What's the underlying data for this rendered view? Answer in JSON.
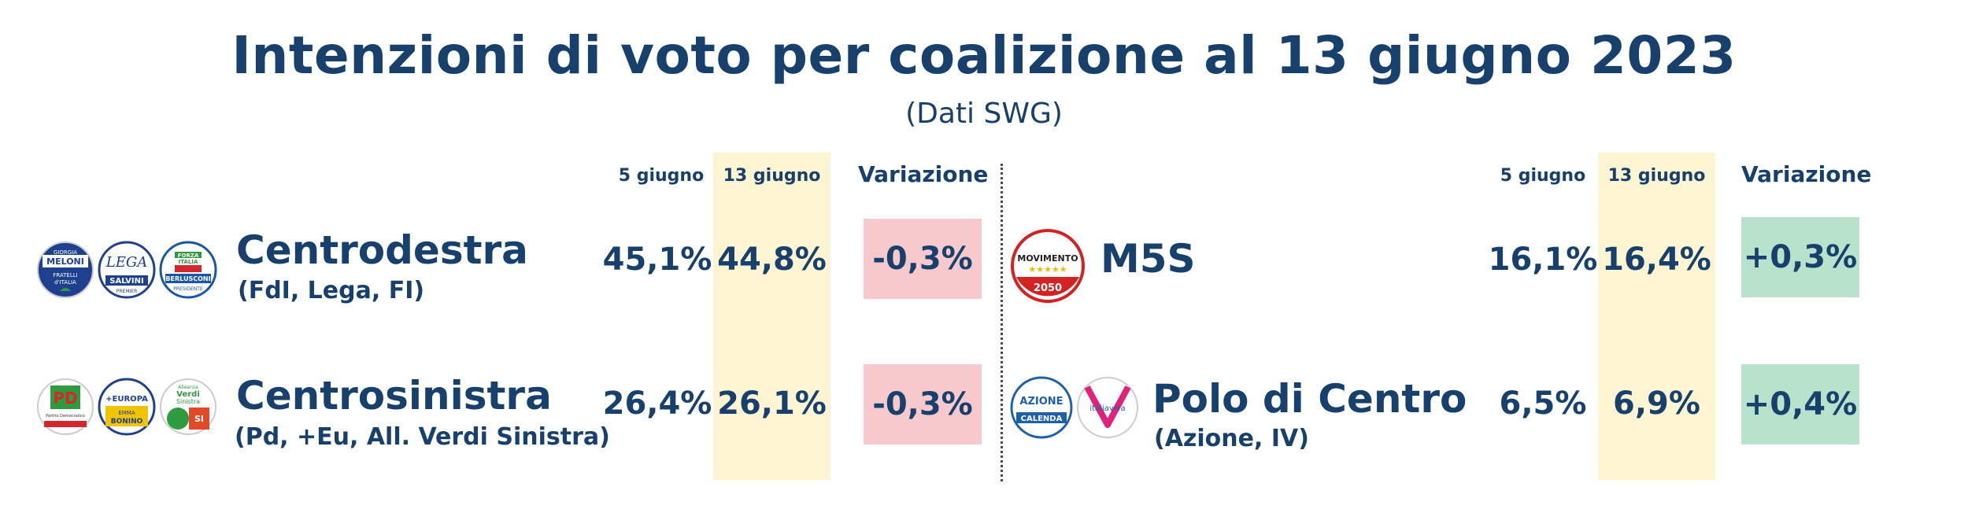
{
  "title": "Intenzioni di voto per coalizione al 13 giugno 2023",
  "subtitle": "(Dati SWG)",
  "left": {
    "headers": {
      "prev": "5 giugno",
      "curr": "13 giugno",
      "change": "Variazione"
    },
    "rows": [
      {
        "name": "Centrodestra",
        "sub": "(FdI, Lega, FI)",
        "prev": "45,1%",
        "curr": "44,8%",
        "change": "-0,3%",
        "logos": [
          {
            "icon": "fratelli-italia-logo",
            "texts": [
              "GIORGIA",
              "MELONI",
              "FRATELLI",
              "d'ITALIA"
            ]
          },
          {
            "icon": "lega-logo",
            "texts": [
              "LEGA",
              "SALVINI",
              "PREMIER"
            ]
          },
          {
            "icon": "forza-italia-logo",
            "texts": [
              "FORZA",
              "ITALIA",
              "BERLUSCONI",
              "PRESIDENTE"
            ]
          }
        ]
      },
      {
        "name": "Centrosinistra",
        "sub": "(Pd, +Eu, All. Verdi Sinistra)",
        "prev": "26,4%",
        "curr": "26,1%",
        "change": "-0,3%",
        "logos": [
          {
            "icon": "pd-logo",
            "texts": [
              "PD",
              "Partito Democratico"
            ]
          },
          {
            "icon": "piu-europa-logo",
            "texts": [
              "+EUROPA",
              "EMMA",
              "BONINO"
            ]
          },
          {
            "icon": "verdi-sinistra-logo",
            "texts": [
              "Alleanza",
              "Verdi",
              "Sinistra",
              "SI"
            ]
          }
        ]
      }
    ]
  },
  "right": {
    "headers": {
      "prev": "5 giugno",
      "curr": "13 giugno",
      "change": "Variazione"
    },
    "rows": [
      {
        "name": "M5S",
        "sub": "",
        "prev": "16,1%",
        "curr": "16,4%",
        "change": "+0,3%",
        "logos": [
          {
            "icon": "m5s-logo",
            "texts": [
              "MOVIMENTO",
              "2050"
            ]
          }
        ]
      },
      {
        "name": "Polo di Centro",
        "sub": "(Azione, IV)",
        "prev": "6,5%",
        "curr": "6,9%",
        "change": "+0,4%",
        "logos": [
          {
            "icon": "azione-logo",
            "texts": [
              "AZIONE",
              "CALENDA"
            ]
          },
          {
            "icon": "italia-viva-logo",
            "texts": [
              "italiaviva"
            ]
          }
        ]
      }
    ]
  },
  "colors": {
    "text": "#17406d",
    "highlight_column": "#fdf5d2",
    "negative": "#f7c9cd",
    "positive": "#b9e2cd"
  }
}
